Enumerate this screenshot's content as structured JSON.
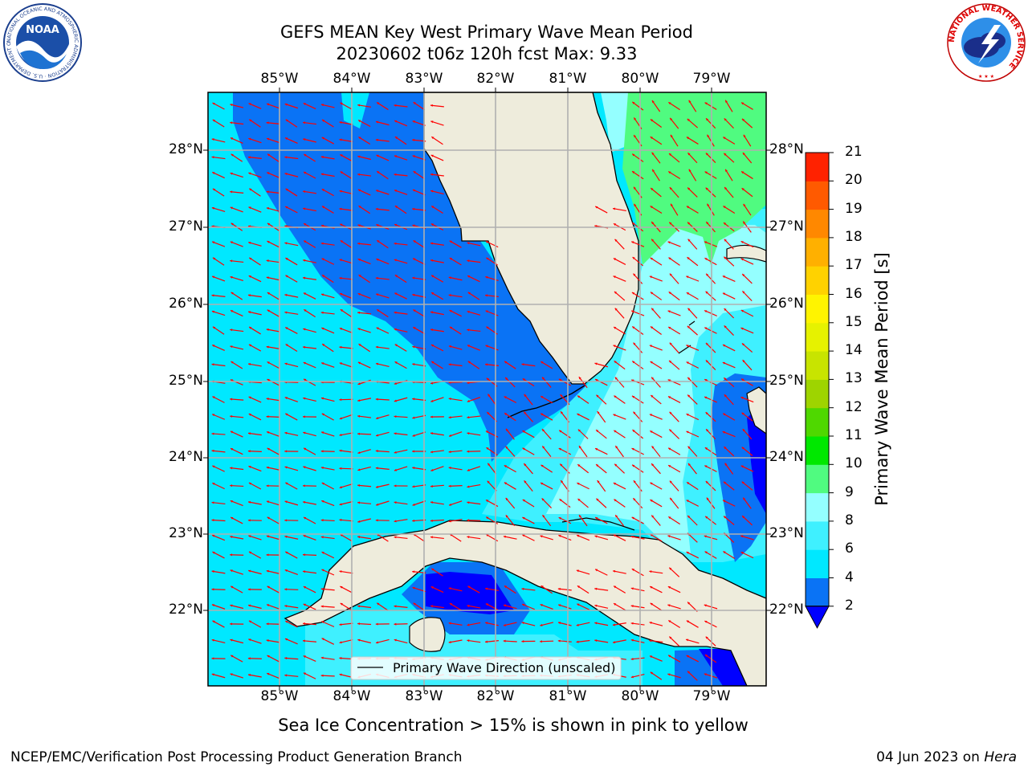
{
  "header": {
    "title_line1": "GEFS MEAN Key West Primary Wave Mean Period",
    "title_line2": "20230602 t06z 120h fcst   Max: 9.33"
  },
  "logos": {
    "noaa_text": "NOAA",
    "noaa_ring_text": "NATIONAL OCEANIC AND ATMOSPHERIC ADMINISTRATION · U.S. DEPARTMENT OF COMMERCE",
    "nws_ring_text": "NATIONAL WEATHER SERVICE"
  },
  "map": {
    "lon_labels": [
      "85°W",
      "84°W",
      "83°W",
      "82°W",
      "81°W",
      "80°W",
      "79°W"
    ],
    "lat_labels": [
      "28°N",
      "27°N",
      "26°N",
      "25°N",
      "24°N",
      "23°N",
      "22°N"
    ],
    "legend_label": "Primary Wave Direction (unscaled)",
    "arrow_color": "#ff0000",
    "land_color": "#eeecdc",
    "grid_color": "#b0b0b0"
  },
  "colorbar": {
    "title": "Primary Wave Mean Period [s]",
    "tick_labels": [
      "2",
      "4",
      "6",
      "8",
      "9",
      "10",
      "11",
      "12",
      "13",
      "14",
      "15",
      "16",
      "17",
      "18",
      "19",
      "20",
      "21"
    ],
    "colors": [
      "#0a73f5",
      "#00e8ff",
      "#3ff0ff",
      "#94ffff",
      "#50fb80",
      "#00e800",
      "#4fd800",
      "#9ed400",
      "#c8e400",
      "#e6f200",
      "#fff400",
      "#ffd200",
      "#ffb000",
      "#ff8800",
      "#ff5a00",
      "#ff2200"
    ],
    "under_color": "#0000ff"
  },
  "caption": "Sea Ice Concentration > 15% is shown in pink to yellow",
  "footer": {
    "left": "NCEP/EMC/Verification Post Processing Product Generation Branch",
    "right_date": "04 Jun 2023 on",
    "right_host": "Hera"
  }
}
